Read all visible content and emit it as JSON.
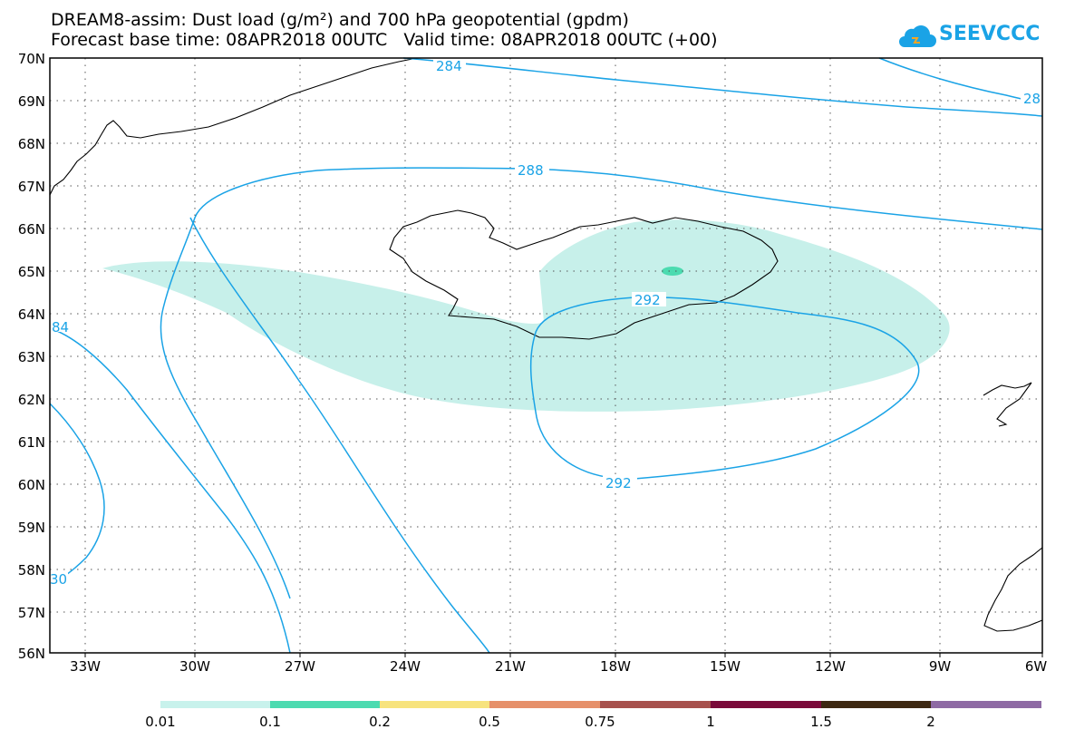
{
  "title": {
    "line1": "DREAM8-assim: Dust load (g/m²) and 700 hPa geopotential (gpdm)",
    "line2": "Forecast base time: 08APR2018 00UTC   Valid time: 08APR2018 00UTC (+00)"
  },
  "logo": {
    "text": "SEEVCCC",
    "icon": "cloud-icon",
    "color": "#1aa3e6"
  },
  "map": {
    "lat_labels": [
      "70N",
      "69N",
      "68N",
      "67N",
      "66N",
      "65N",
      "64N",
      "63N",
      "62N",
      "61N",
      "60N",
      "59N",
      "58N",
      "57N",
      "56N"
    ],
    "lon_labels": [
      "33W",
      "30W",
      "27W",
      "24W",
      "21W",
      "18W",
      "15W",
      "12W",
      "9W",
      "6W"
    ],
    "contour_labels": [
      "284",
      "28",
      "288",
      "292",
      "292",
      "84",
      "30"
    ],
    "contour_color": "#1aa3e6",
    "dust_color": "#c7f0ea"
  },
  "colorbar": {
    "labels": [
      "0.01",
      "0.1",
      "0.2",
      "0.5",
      "0.75",
      "1",
      "1.5",
      "2"
    ],
    "colors": [
      "#c8f2ec",
      "#4cdbb0",
      "#f7e37d",
      "#e6906a",
      "#a7514d",
      "#7a0a3a",
      "#3d2812",
      "#8e6aa4"
    ]
  }
}
